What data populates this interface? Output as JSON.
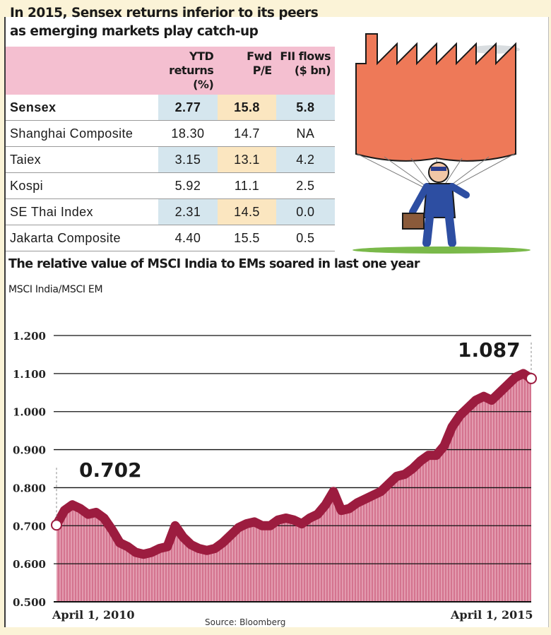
{
  "headline": {
    "line1": "In 2015, Sensex returns inferior to its peers",
    "line2": "as emerging markets play catch-up"
  },
  "table": {
    "headers": [
      {
        "line1": "",
        "line2": ""
      },
      {
        "line1": "YTD returns",
        "line2": "(%)"
      },
      {
        "line1": "Fwd",
        "line2": "P/E"
      },
      {
        "line1": "FII flows",
        "line2": "($ bn)"
      }
    ],
    "rows": [
      {
        "name": "Sensex",
        "ytd": "2.77",
        "pe": "15.8",
        "fii": "5.8",
        "highlight": true
      },
      {
        "name": "Shanghai Composite",
        "ytd": "18.30",
        "pe": "14.7",
        "fii": "NA"
      },
      {
        "name": "Taiex",
        "ytd": "3.15",
        "pe": "13.1",
        "fii": "4.2"
      },
      {
        "name": "Kospi",
        "ytd": "5.92",
        "pe": "11.1",
        "fii": "2.5"
      },
      {
        "name": "SE Thai Index",
        "ytd": "2.31",
        "pe": "14.5",
        "fii": "0.0"
      },
      {
        "name": "Jakarta Composite",
        "ytd": "4.40",
        "pe": "15.5",
        "fii": "0.5"
      }
    ]
  },
  "chart_data": {
    "type": "area",
    "title": "The relative value of MSCI India to EMs soared in last one year",
    "subtitle": "MSCI India/MSCI EM",
    "ylim": [
      0.5,
      1.2
    ],
    "yticks": [
      "1.200",
      "1.100",
      "1.000",
      "0.900",
      "0.800",
      "0.700",
      "0.600",
      "0.500"
    ],
    "ytick_values": [
      1.2,
      1.1,
      1.0,
      0.9,
      0.8,
      0.7,
      0.6,
      0.5
    ],
    "xlim": [
      0,
      60
    ],
    "x_labels": [
      "April 1, 2010",
      "April 1, 2015"
    ],
    "x": [
      0,
      1,
      2,
      3,
      4,
      5,
      6,
      7,
      8,
      9,
      10,
      11,
      12,
      13,
      14,
      15,
      16,
      17,
      18,
      19,
      20,
      21,
      22,
      23,
      24,
      25,
      26,
      27,
      28,
      29,
      30,
      31,
      32,
      33,
      34,
      35,
      36,
      37,
      38,
      39,
      40,
      41,
      42,
      43,
      44,
      45,
      46,
      47,
      48,
      49,
      50,
      51,
      52,
      53,
      54,
      55,
      56,
      57,
      58,
      59,
      60
    ],
    "y": [
      0.702,
      0.74,
      0.755,
      0.745,
      0.73,
      0.735,
      0.72,
      0.69,
      0.655,
      0.645,
      0.63,
      0.625,
      0.63,
      0.64,
      0.645,
      0.7,
      0.67,
      0.65,
      0.64,
      0.635,
      0.64,
      0.655,
      0.675,
      0.695,
      0.705,
      0.71,
      0.7,
      0.7,
      0.715,
      0.72,
      0.715,
      0.705,
      0.72,
      0.73,
      0.755,
      0.79,
      0.74,
      0.745,
      0.76,
      0.77,
      0.78,
      0.79,
      0.81,
      0.83,
      0.835,
      0.85,
      0.87,
      0.885,
      0.885,
      0.91,
      0.96,
      0.99,
      1.01,
      1.03,
      1.04,
      1.03,
      1.05,
      1.07,
      1.09,
      1.1,
      1.087
    ],
    "series_color": "#9c1c3f",
    "fill_color": "#d4748f",
    "annotations": [
      {
        "text": "0.702",
        "x": 0,
        "y": 0.702
      },
      {
        "text": "1.087",
        "x": 60,
        "y": 1.087
      }
    ],
    "source": "Source: Bloomberg",
    "grid": true
  }
}
